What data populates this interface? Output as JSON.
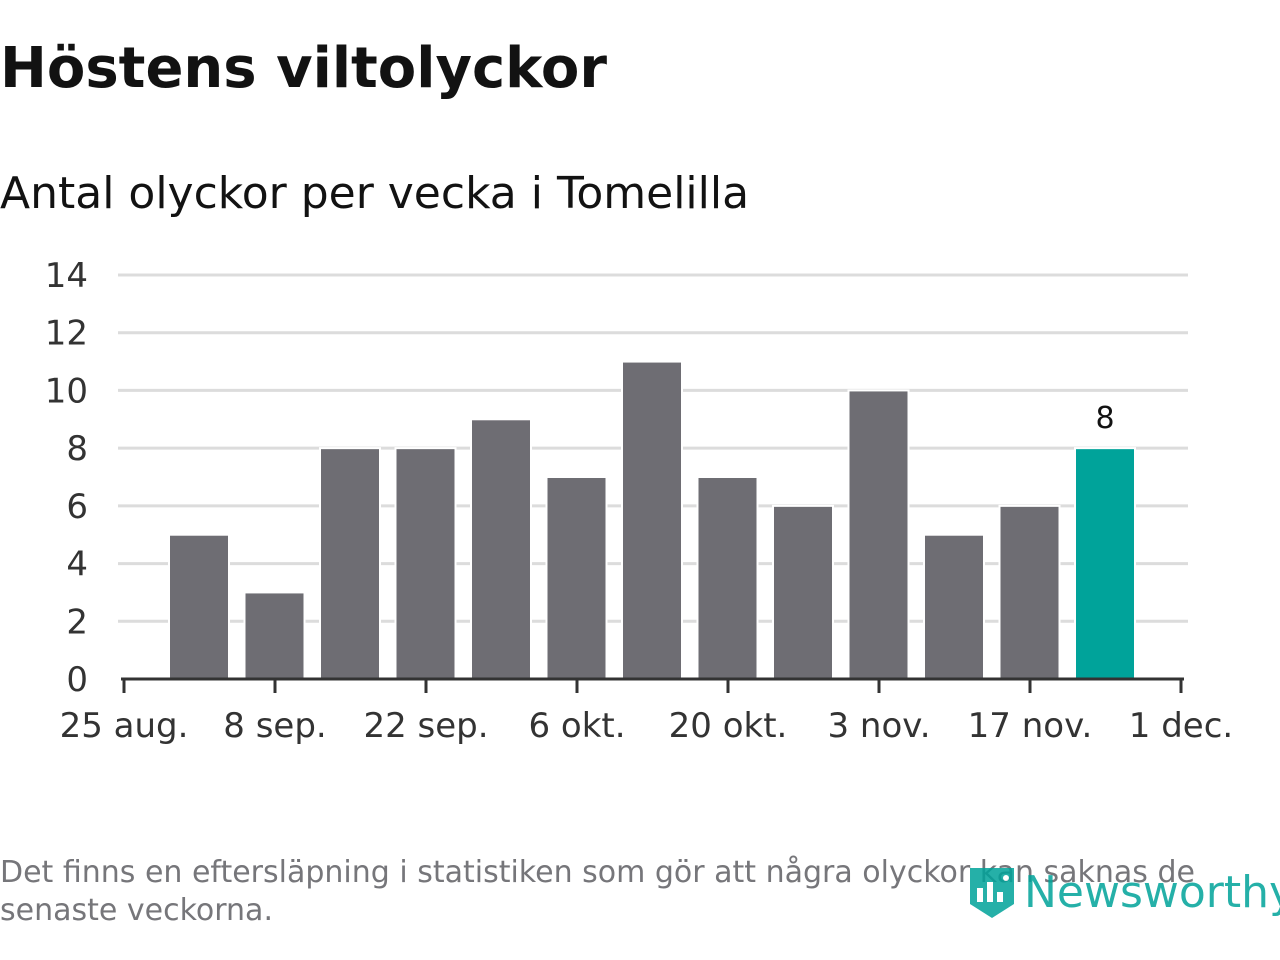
{
  "title": "Höstens viltolyckor",
  "subtitle": "Antal olyckor per vecka i Tomelilla",
  "note": "Det finns en eftersläpning i statistiken som gör att några olyckor kan saknas de senaste veckorna.",
  "brand": {
    "name": "Newsworthy",
    "icon": "newsworthy-logo-icon",
    "color": "#00a39a"
  },
  "colors": {
    "bar": "#6e6d73",
    "highlight": "#00a39a",
    "grid": "#dcdcdc",
    "axis": "#333333"
  },
  "chart_data": {
    "type": "bar",
    "title": "Höstens viltolyckor",
    "subtitle": "Antal olyckor per vecka i Tomelilla",
    "xlabel": "",
    "ylabel": "",
    "ylim": [
      0,
      14
    ],
    "yticks": [
      0,
      2,
      4,
      6,
      8,
      10,
      12,
      14
    ],
    "grid": true,
    "x_tick_labels": [
      "25 aug.",
      "8 sep.",
      "22 sep.",
      "6 okt.",
      "20 okt.",
      "3 nov.",
      "17 nov.",
      "1 dec."
    ],
    "values": [
      5,
      3,
      8,
      8,
      9,
      7,
      11,
      7,
      6,
      10,
      5,
      6,
      8
    ],
    "highlight_index": 12,
    "highlight_label": "8"
  }
}
